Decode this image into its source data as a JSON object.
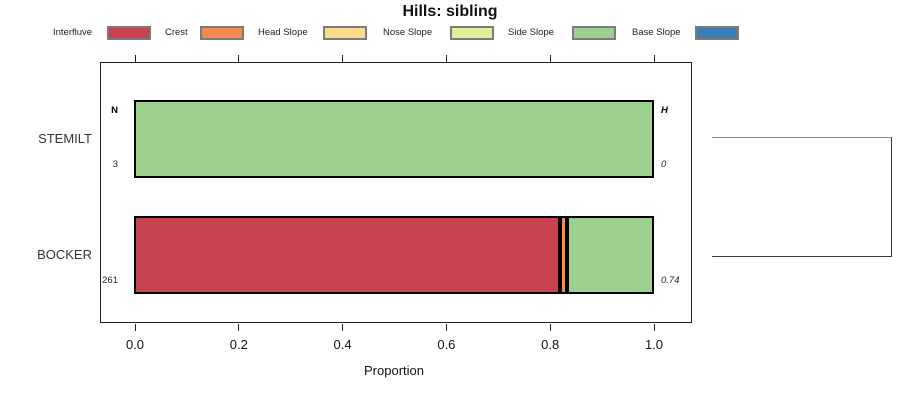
{
  "title": "Hills: sibling",
  "legend": {
    "items": [
      {
        "label": "Interfluve",
        "color": "#C8424F"
      },
      {
        "label": "Crest",
        "color": "#F58A50"
      },
      {
        "label": "Head Slope",
        "color": "#FBDC8C"
      },
      {
        "label": "Nose Slope",
        "color": "#E1EF9D"
      },
      {
        "label": "Side Slope",
        "color": "#9CD190"
      },
      {
        "label": "Base Slope",
        "color": "#3B7CB3"
      }
    ]
  },
  "axis": {
    "label": "Proportion",
    "ticks": [
      "0.0",
      "0.2",
      "0.4",
      "0.6",
      "0.8",
      "1.0"
    ]
  },
  "chart_data": {
    "type": "bar",
    "orientation": "horizontal",
    "stacked": true,
    "title": "Hills: sibling",
    "xlabel": "Proportion",
    "xlim": [
      0,
      1
    ],
    "xticks": [
      0,
      0.2,
      0.4,
      0.6,
      0.8,
      1.0
    ],
    "grid": false,
    "legend_position": "top",
    "categories": [
      "STEMILT",
      "BOCKER"
    ],
    "series": [
      {
        "name": "Interfluve",
        "color": "#C8424F",
        "values": [
          0,
          0.82
        ]
      },
      {
        "name": "Crest",
        "color": "#F58A50",
        "values": [
          0,
          0.013
        ]
      },
      {
        "name": "Head Slope",
        "color": "#FBDC8C",
        "values": [
          0,
          0
        ]
      },
      {
        "name": "Nose Slope",
        "color": "#E1EF9D",
        "values": [
          0,
          0
        ]
      },
      {
        "name": "Side Slope",
        "color": "#9CD190",
        "values": [
          1.0,
          0.167
        ]
      },
      {
        "name": "Base Slope",
        "color": "#3B7CB3",
        "values": [
          0,
          0
        ]
      }
    ],
    "headers": {
      "n": "N",
      "h": "H"
    },
    "annotations": {
      "N": [
        "3",
        "261"
      ],
      "H": [
        "0",
        "0.74"
      ]
    }
  }
}
